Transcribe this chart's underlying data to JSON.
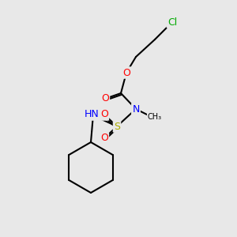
{
  "bg_color": "#e8e8e8",
  "bond_color": "#000000",
  "bond_lw": 1.5,
  "atom_colors": {
    "Cl": "#00aa00",
    "O": "#ff0000",
    "N": "#0000ff",
    "S": "#aaaa00",
    "H": "#555555",
    "C": "#000000"
  },
  "font_size": 9,
  "font_size_small": 8
}
